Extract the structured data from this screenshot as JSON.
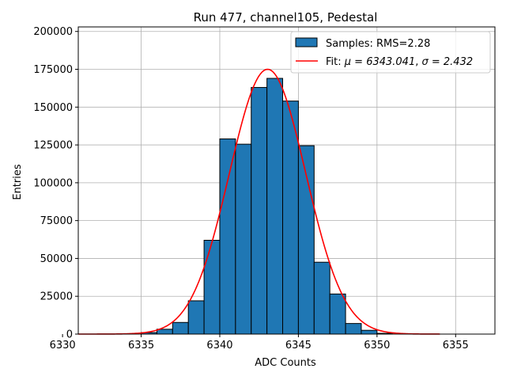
{
  "chart_data": {
    "type": "bar",
    "title": "Run 477, channel105, Pedestal",
    "xlabel": "ADC Counts",
    "ylabel": "Entries",
    "xlim": [
      6331,
      6357.5
    ],
    "ylim": [
      0,
      203000
    ],
    "grid": true,
    "legend_placement": "top-right",
    "x_ticks": [
      6330,
      6335,
      6340,
      6345,
      6350,
      6355
    ],
    "y_ticks": [
      0,
      25000,
      50000,
      75000,
      100000,
      125000,
      150000,
      175000,
      200000
    ],
    "bin_width": 1,
    "histogram": {
      "name": "Samples: RMS=2.28",
      "color": "#1f77b4",
      "bin_edges": [
        6335,
        6336,
        6337,
        6338,
        6339,
        6340,
        6341,
        6342,
        6343,
        6344,
        6345,
        6346,
        6347,
        6348,
        6349,
        6350,
        6351
      ],
      "counts": [
        1000,
        3200,
        7700,
        22000,
        62000,
        129000,
        125500,
        163000,
        169000,
        154000,
        124500,
        47500,
        26500,
        7000,
        2500,
        500
      ]
    },
    "fit": {
      "name_prefix": "Fit: ",
      "mu_label": "μ = 6343.041",
      "sigma_label": "σ = 2.432",
      "separator": ", ",
      "color": "#ff0000",
      "mu": 6343.041,
      "sigma": 2.432,
      "peak": 175000,
      "x_range": [
        6331,
        6354
      ]
    }
  }
}
